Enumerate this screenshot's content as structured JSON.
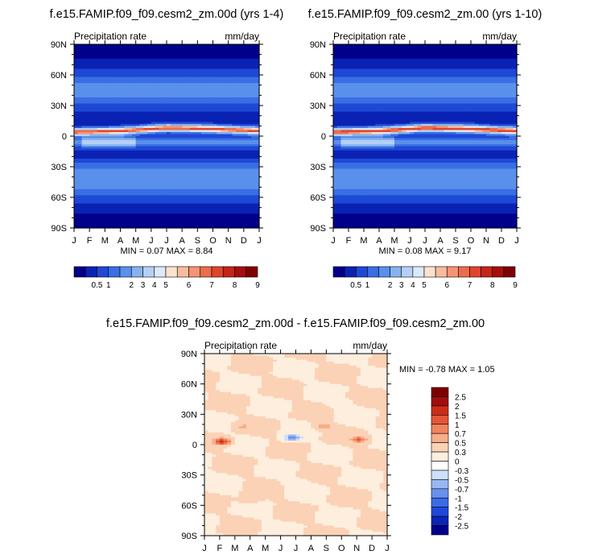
{
  "chart_data": [
    {
      "type": "heatmap",
      "title": "f.e15.FAMIP.f09_f09.cesm2_zm.00d (yrs 1-4)",
      "left_label": "Precipitation rate",
      "right_label": "mm/day",
      "stats": "MIN =   0.07 MAX =   8.84",
      "x_ticks": [
        "J",
        "F",
        "M",
        "A",
        "M",
        "J",
        "J",
        "A",
        "S",
        "O",
        "N",
        "D",
        "J"
      ],
      "y_ticks": [
        "90N",
        "60N",
        "30N",
        "0",
        "30S",
        "60S",
        "90S"
      ],
      "ylim": [
        -90,
        90
      ],
      "colorbar_orientation": "horizontal",
      "colorbar_labels": [
        "0.5",
        "1",
        "2",
        "3",
        "4",
        "5",
        "6",
        "7",
        "8",
        "9"
      ],
      "colorbar_levels": [
        0.25,
        0.5,
        1,
        1.5,
        2,
        3,
        4,
        5,
        5.5,
        6,
        6.5,
        7,
        7.5,
        8,
        8.5,
        9
      ],
      "itcz": [
        {
          "month": 1,
          "lat": 4
        },
        {
          "month": 4,
          "lat": 5
        },
        {
          "month": 7,
          "lat": 8
        },
        {
          "month": 10,
          "lat": 7
        },
        {
          "month": 13,
          "lat": 5
        }
      ],
      "itcz_peak_mm_day": 8.84
    },
    {
      "type": "heatmap",
      "title": "f.e15.FAMIP.f09_f09.cesm2_zm.00 (yrs 1-10)",
      "left_label": "Precipitation rate",
      "right_label": "mm/day",
      "stats": "MIN =   0.08 MAX =   9.17",
      "x_ticks": [
        "J",
        "F",
        "M",
        "A",
        "M",
        "J",
        "J",
        "A",
        "S",
        "O",
        "N",
        "D",
        "J"
      ],
      "y_ticks": [
        "90N",
        "60N",
        "30N",
        "0",
        "30S",
        "60S",
        "90S"
      ],
      "ylim": [
        -90,
        90
      ],
      "colorbar_orientation": "horizontal",
      "colorbar_labels": [
        "0.5",
        "1",
        "2",
        "3",
        "4",
        "5",
        "6",
        "7",
        "8",
        "9"
      ],
      "colorbar_levels": [
        0.25,
        0.5,
        1,
        1.5,
        2,
        3,
        4,
        5,
        5.5,
        6,
        6.5,
        7,
        7.5,
        8,
        8.5,
        9
      ],
      "itcz": [
        {
          "month": 1,
          "lat": 4
        },
        {
          "month": 4,
          "lat": 5
        },
        {
          "month": 7,
          "lat": 8
        },
        {
          "month": 10,
          "lat": 7
        },
        {
          "month": 13,
          "lat": 5
        }
      ],
      "itcz_peak_mm_day": 9.17
    },
    {
      "type": "heatmap",
      "title": "f.e15.FAMIP.f09_f09.cesm2_zm.00d - f.e15.FAMIP.f09_f09.cesm2_zm.00",
      "left_label": "Precipitation rate",
      "right_label": "mm/day",
      "stats": "MIN =  -0.78 MAX =   1.05",
      "x_ticks": [
        "J",
        "F",
        "M",
        "A",
        "M",
        "J",
        "J",
        "A",
        "S",
        "O",
        "N",
        "D",
        "J"
      ],
      "y_ticks": [
        "90N",
        "60N",
        "30N",
        "0",
        "30S",
        "60S",
        "90S"
      ],
      "ylim": [
        -90,
        90
      ],
      "colorbar_orientation": "vertical",
      "colorbar_labels": [
        "2.5",
        "2",
        "1.5",
        "1",
        "0.7",
        "0.5",
        "0.3",
        "0",
        "-0.3",
        "-0.5",
        "-0.7",
        "-1",
        "-1.5",
        "-2",
        "-2.5"
      ],
      "colorbar_levels": [
        -2.5,
        -2,
        -1.5,
        -1,
        -0.7,
        -0.5,
        -0.3,
        0,
        0.3,
        0.5,
        0.7,
        1,
        1.5,
        2,
        2.5
      ],
      "anomalies": [
        {
          "month": 2.2,
          "lat": 3,
          "value": 1.05
        },
        {
          "month": 11.2,
          "lat": 5,
          "value": 0.7
        },
        {
          "month": 6.8,
          "lat": 7,
          "value": -0.78
        },
        {
          "month": 8.8,
          "lat": 18,
          "value": 0.5
        },
        {
          "month": 3.5,
          "lat": 18,
          "value": 0.3
        },
        {
          "month": 7,
          "lat": -38,
          "value": -0.3
        },
        {
          "month": 4,
          "lat": -55,
          "value": 0.3
        },
        {
          "month": 10,
          "lat": 40,
          "value": -0.3
        }
      ]
    }
  ]
}
